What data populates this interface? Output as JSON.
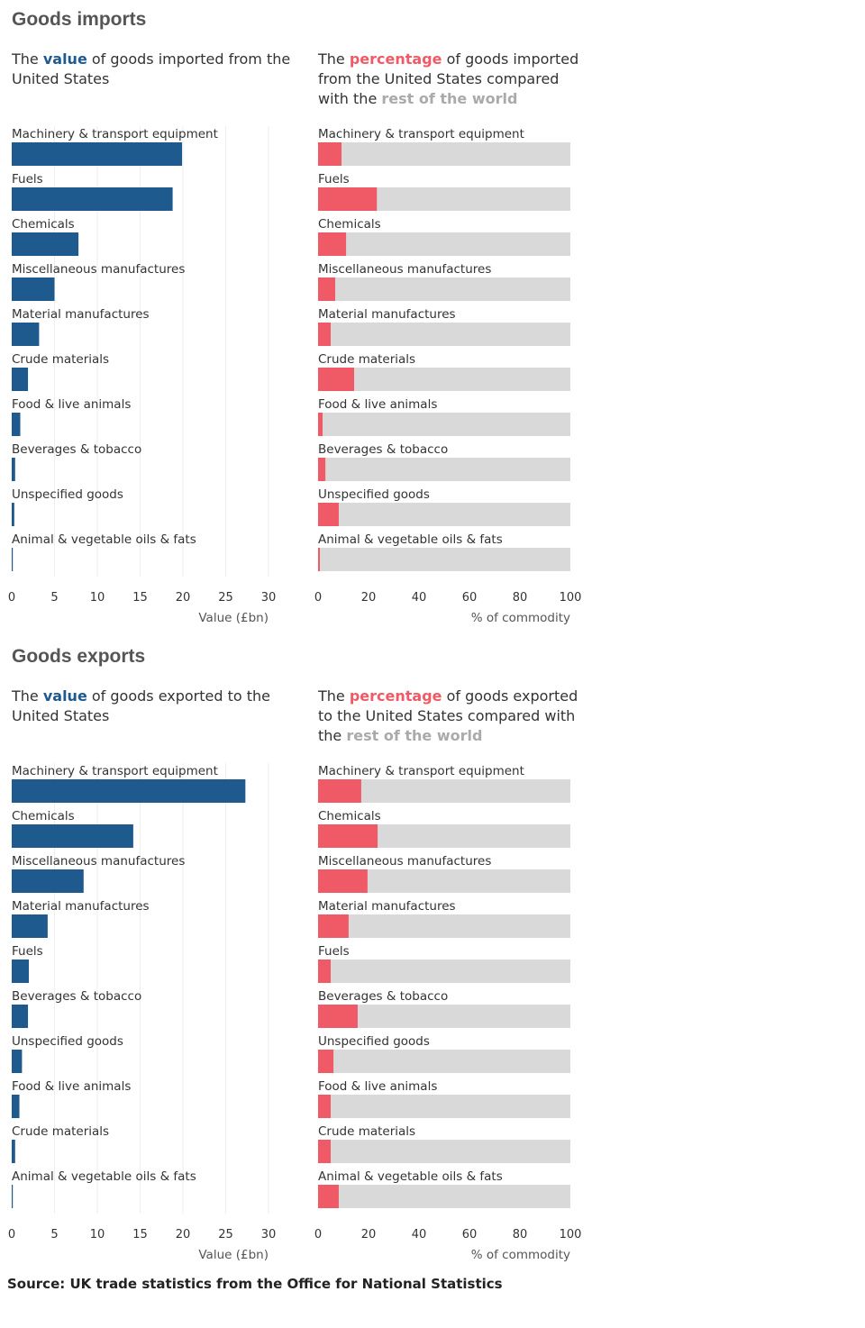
{
  "sections": [
    {
      "title": "Goods imports",
      "value_subtitle": {
        "pre": "The ",
        "key": "value",
        "post": " of goods imported from the United States"
      },
      "pct_subtitle": {
        "pre": "The ",
        "key": "percentage",
        "mid": " of goods imported from the United States compared with the ",
        "rest": "rest of the world"
      }
    },
    {
      "title": "Goods exports",
      "value_subtitle": {
        "pre": "The ",
        "key": "value",
        "post": " of goods exported to the United States"
      },
      "pct_subtitle": {
        "pre": "The ",
        "key": "percentage",
        "mid": " of goods exported to the United States compared with the ",
        "rest": "rest of the world"
      }
    }
  ],
  "source": "Source: UK trade statistics from the Office for National Statistics",
  "colors": {
    "value_bar": "#1f5a8e",
    "pct_bar": "#f05a66",
    "pct_track": "#d9d9d9",
    "grid": "#eeeeee",
    "text": "#333333",
    "axis_label": "#555555"
  },
  "chart_data": [
    {
      "type": "bar",
      "orientation": "horizontal",
      "section": "imports",
      "measure": "value",
      "categories": [
        "Machinery & transport equipment",
        "Fuels",
        "Chemicals",
        "Miscellaneous manufactures",
        "Material manufactures",
        "Crude materials",
        "Food & live animals",
        "Beverages & tobacco",
        "Unspecified goods",
        "Animal & vegetable oils & fats"
      ],
      "values": [
        19.9,
        18.8,
        7.8,
        5.0,
        3.2,
        1.9,
        1.0,
        0.4,
        0.3,
        0.05
      ],
      "xlabel": "Value (£bn)",
      "xlim": [
        0,
        30
      ],
      "xticks": [
        0,
        5,
        10,
        15,
        20,
        25,
        30
      ],
      "grid": true
    },
    {
      "type": "bar",
      "orientation": "horizontal",
      "section": "imports",
      "measure": "percentage",
      "categories": [
        "Machinery & transport equipment",
        "Fuels",
        "Chemicals",
        "Miscellaneous manufactures",
        "Material manufactures",
        "Crude materials",
        "Food & live animals",
        "Beverages & tobacco",
        "Unspecified goods",
        "Animal & vegetable oils & fats"
      ],
      "values": [
        9.3,
        23.3,
        11.1,
        6.8,
        5.0,
        14.3,
        1.8,
        2.9,
        8.2,
        0.7
      ],
      "xlabel": "% of commodity",
      "xlim": [
        0,
        100
      ],
      "xticks": [
        0,
        20,
        40,
        60,
        80,
        100
      ]
    },
    {
      "type": "bar",
      "orientation": "horizontal",
      "section": "exports",
      "measure": "value",
      "categories": [
        "Machinery & transport equipment",
        "Chemicals",
        "Miscellaneous manufactures",
        "Material manufactures",
        "Fuels",
        "Beverages & tobacco",
        "Unspecified goods",
        "Food & live animals",
        "Crude materials",
        "Animal & vegetable oils & fats"
      ],
      "values": [
        27.3,
        14.2,
        8.4,
        4.2,
        2.0,
        1.9,
        1.2,
        0.9,
        0.4,
        0.05
      ],
      "xlabel": "Value (£bn)",
      "xlim": [
        0,
        30
      ],
      "xticks": [
        0,
        5,
        10,
        15,
        20,
        25,
        30
      ],
      "grid": true
    },
    {
      "type": "bar",
      "orientation": "horizontal",
      "section": "exports",
      "measure": "percentage",
      "categories": [
        "Machinery & transport equipment",
        "Chemicals",
        "Miscellaneous manufactures",
        "Material manufactures",
        "Fuels",
        "Beverages & tobacco",
        "Unspecified goods",
        "Food & live animals",
        "Crude materials",
        "Animal & vegetable oils & fats"
      ],
      "values": [
        17.1,
        23.6,
        19.6,
        12.1,
        5.0,
        15.7,
        6.1,
        5.0,
        5.0,
        8.2
      ],
      "xlabel": "% of commodity",
      "xlim": [
        0,
        100
      ],
      "xticks": [
        0,
        20,
        40,
        60,
        80,
        100
      ]
    }
  ]
}
